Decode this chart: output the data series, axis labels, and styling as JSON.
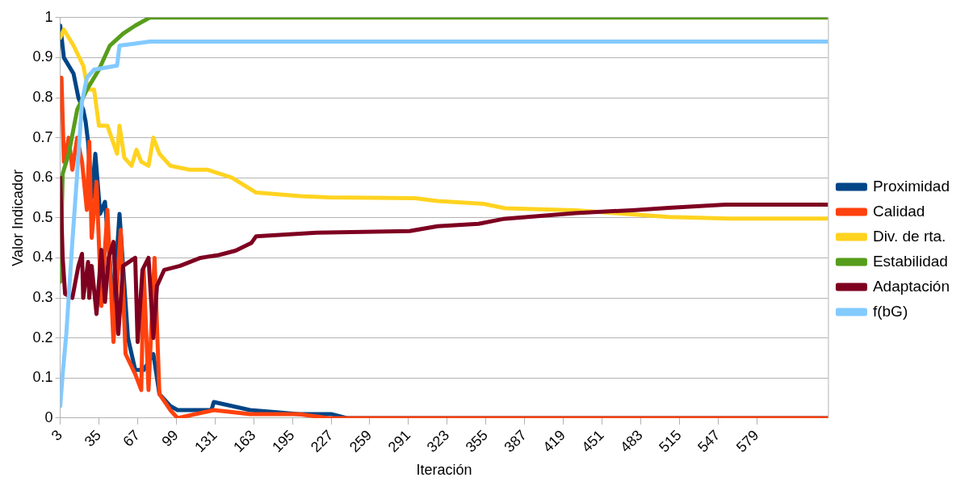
{
  "chart_data": {
    "type": "line",
    "xlabel": "Iteración",
    "ylabel": "Valor Indicador",
    "xlim": [
      3,
      638
    ],
    "xticks": [
      3,
      35,
      67,
      99,
      131,
      163,
      195,
      227,
      259,
      291,
      323,
      355,
      387,
      419,
      451,
      483,
      515,
      547,
      579
    ],
    "ylim": [
      0,
      1
    ],
    "yticks": [
      0,
      0.1,
      0.2,
      0.3,
      0.4,
      0.5,
      0.6,
      0.7,
      0.8,
      0.9,
      1
    ],
    "grid": "y",
    "legend": "right",
    "marker": "none",
    "line_style": "solid",
    "series": [
      {
        "name": "Proximidad",
        "color": "#004586",
        "x": [
          3,
          6,
          14,
          18,
          22,
          24,
          26,
          29,
          32,
          36,
          40,
          47,
          52,
          59,
          65,
          72,
          80,
          85,
          94,
          100,
          128,
          130,
          160,
          200,
          227,
          240,
          638
        ],
        "values": [
          0.98,
          0.9,
          0.86,
          0.8,
          0.77,
          0.74,
          0.69,
          0.55,
          0.66,
          0.51,
          0.54,
          0.28,
          0.51,
          0.2,
          0.12,
          0.12,
          0.16,
          0.06,
          0.03,
          0.02,
          0.02,
          0.04,
          0.02,
          0.01,
          0.01,
          0,
          0
        ]
      },
      {
        "name": "Calidad",
        "color": "#ff420e",
        "x": [
          3,
          4,
          6,
          10,
          13,
          17,
          21,
          25,
          27,
          29,
          33,
          37,
          42,
          47,
          53,
          57,
          65,
          70,
          72,
          76,
          81,
          85,
          94,
          100,
          130,
          160,
          200,
          225,
          638
        ],
        "values": [
          0.77,
          0.85,
          0.64,
          0.7,
          0.62,
          0.7,
          0.64,
          0.52,
          0.69,
          0.45,
          0.59,
          0.28,
          0.52,
          0.19,
          0.47,
          0.16,
          0.11,
          0.07,
          0.37,
          0.07,
          0.4,
          0.06,
          0.02,
          0,
          0.02,
          0.01,
          0.01,
          0,
          0
        ]
      },
      {
        "name": "Div. de rta.",
        "color": "#ffd320",
        "x": [
          3,
          6,
          14,
          22,
          26,
          31,
          35,
          42,
          50,
          52,
          56,
          62,
          66,
          70,
          76,
          80,
          85,
          94,
          110,
          125,
          145,
          165,
          202,
          225,
          296,
          315,
          353,
          371,
          429,
          506,
          556,
          638
        ],
        "values": [
          0.95,
          0.97,
          0.93,
          0.88,
          0.82,
          0.82,
          0.73,
          0.73,
          0.66,
          0.73,
          0.65,
          0.63,
          0.67,
          0.64,
          0.63,
          0.7,
          0.66,
          0.63,
          0.62,
          0.62,
          0.6,
          0.563,
          0.554,
          0.551,
          0.549,
          0.542,
          0.535,
          0.524,
          0.519,
          0.502,
          0.498,
          0.498
        ]
      },
      {
        "name": "Estabilidad",
        "color": "#579d1c",
        "x": [
          3,
          5,
          10,
          17,
          25,
          35,
          44,
          55,
          65,
          77,
          638
        ],
        "values": [
          0.34,
          0.61,
          0.66,
          0.77,
          0.82,
          0.87,
          0.93,
          0.96,
          0.98,
          1,
          1
        ]
      },
      {
        "name": "Adaptación",
        "color": "#7e0021",
        "x": [
          3,
          5,
          7,
          13,
          18,
          21,
          22,
          26,
          27,
          29,
          33,
          37,
          40,
          43,
          47,
          51,
          55,
          65,
          67,
          71,
          76,
          80,
          83,
          89,
          102,
          119,
          134,
          148,
          161,
          165,
          215,
          292,
          315,
          349,
          369,
          429,
          476,
          506,
          553,
          638
        ],
        "values": [
          0.6,
          0.4,
          0.31,
          0.3,
          0.38,
          0.41,
          0.3,
          0.39,
          0.3,
          0.38,
          0.26,
          0.42,
          0.29,
          0.4,
          0.44,
          0.21,
          0.38,
          0.4,
          0.19,
          0.37,
          0.4,
          0.2,
          0.33,
          0.37,
          0.38,
          0.4,
          0.407,
          0.418,
          0.437,
          0.454,
          0.463,
          0.467,
          0.479,
          0.485,
          0.497,
          0.512,
          0.519,
          0.525,
          0.533,
          0.533
        ]
      },
      {
        "name": "f(bG)",
        "color": "#83caff",
        "x": [
          3,
          5,
          8,
          13,
          17,
          21,
          25,
          31,
          50,
          52,
          65,
          77,
          638
        ],
        "values": [
          0.03,
          0.11,
          0.21,
          0.44,
          0.61,
          0.79,
          0.85,
          0.87,
          0.88,
          0.93,
          0.935,
          0.94,
          0.94
        ]
      }
    ]
  }
}
